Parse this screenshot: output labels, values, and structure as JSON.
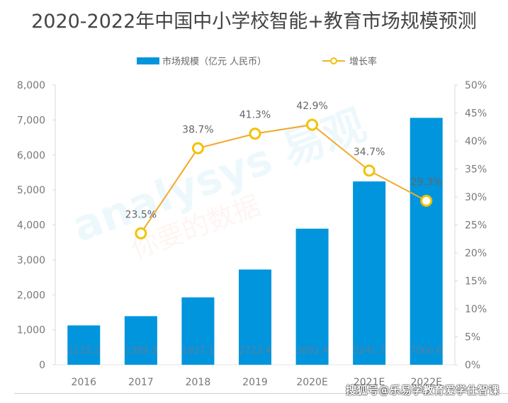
{
  "title": "2020-2022年中国中小学校智能+教育市场规模预测",
  "legend": {
    "bar_label": "市场规模（亿元 人民币）",
    "line_label": "增长率"
  },
  "watermark": {
    "text": "analysys 易观",
    "subtext": "你要的数据"
  },
  "credit": "搜狐号@乐易学教育爱学仕智课",
  "colors": {
    "bar": "#0095dc",
    "line": "#f2a92b",
    "marker_border": "#f2c200",
    "text": "#666666"
  },
  "chart_data": {
    "type": "bar",
    "title": "2020-2022年中国中小学校智能+教育市场规模预测",
    "categories": [
      "2016",
      "2017",
      "2018",
      "2019",
      "2020E",
      "2021E",
      "2022E"
    ],
    "series": [
      {
        "name": "市场规模（亿元 人民币）",
        "type": "bar",
        "axis": "left",
        "values": [
          1125.2,
          1389.3,
          1927.1,
          2723.4,
          3891.4,
          5241.7,
          7060.6
        ],
        "labels": [
          "1125.2",
          "1389.3",
          "1927.1",
          "2723.4",
          "3891.4",
          "5241.7",
          "7060.6"
        ]
      },
      {
        "name": "增长率",
        "type": "line",
        "axis": "right",
        "values": [
          null,
          23.5,
          38.7,
          41.3,
          42.9,
          34.7,
          29.3
        ],
        "labels": [
          null,
          "23.5%",
          "38.7%",
          "41.3%",
          "42.9%",
          "34.7%",
          "29.3%"
        ]
      }
    ],
    "left_axis": {
      "ylim": [
        0,
        8000
      ],
      "ticks": [
        "0",
        "1,000",
        "2,000",
        "3,000",
        "4,000",
        "5,000",
        "6,000",
        "7,000",
        "8,000"
      ]
    },
    "right_axis": {
      "ylim": [
        0,
        50
      ],
      "ticks": [
        "0%",
        "5%",
        "10%",
        "15%",
        "20%",
        "25%",
        "30%",
        "35%",
        "40%",
        "45%",
        "50%"
      ]
    },
    "xlabel": "",
    "ylabel": "",
    "grid": false,
    "legend_position": "top-center"
  }
}
